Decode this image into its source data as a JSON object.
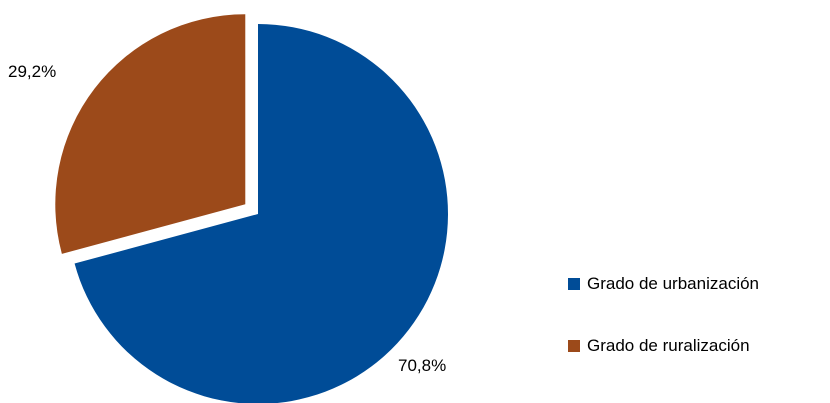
{
  "chart_data": {
    "type": "pie",
    "categories": [
      "Grado de urbanización",
      "Grado de ruralización"
    ],
    "values": [
      70.8,
      29.2
    ],
    "value_labels": [
      "70,8%",
      "29,2%"
    ],
    "colors": [
      "#004C97",
      "#9C4A1A"
    ],
    "exploded": [
      false,
      true
    ],
    "title": "",
    "legend_position": "right"
  }
}
